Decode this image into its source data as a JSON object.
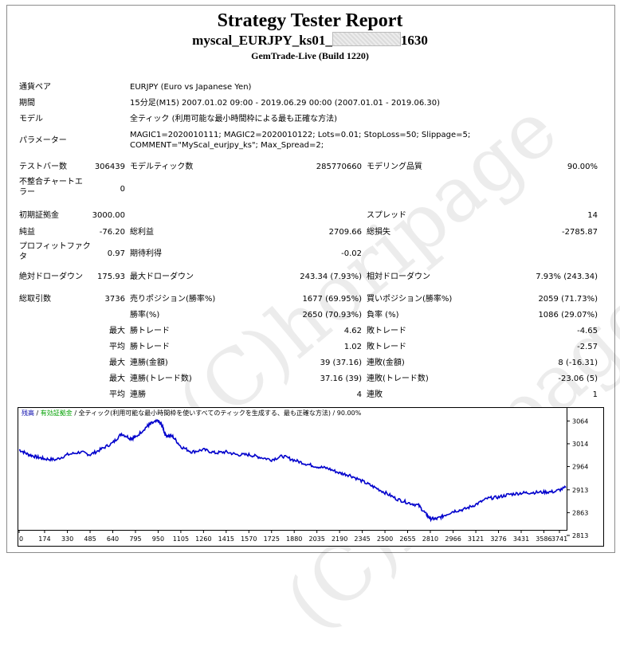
{
  "header": {
    "title": "Strategy Tester Report",
    "subtitle_prefix": "myscal_EURJPY_ks01_",
    "subtitle_suffix": "1630",
    "build": "GemTrade-Live (Build 1220)"
  },
  "rows": {
    "symbol": {
      "label": "通貨ペア",
      "value": "EURJPY (Euro vs Japanese Yen)"
    },
    "period": {
      "label": "期間",
      "value": "15分足(M15) 2007.01.02 09:00 - 2019.06.29 00:00 (2007.01.01 - 2019.06.30)"
    },
    "model": {
      "label": "モデル",
      "value": "全ティック (利用可能な最小時間枠による最も正確な方法)"
    },
    "params": {
      "label": "パラメーター",
      "value": "MAGIC1=2020010111; MAGIC2=2020010122; Lots=0.01; StopLoss=50; Slippage=5; COMMENT=\"MyScal_eurjpy_ks\"; Max_Spread=2;"
    }
  },
  "stats": {
    "bars_label": "テストバー数",
    "bars": "306439",
    "ticks_label": "モデルティック数",
    "ticks": "285770660",
    "quality_label": "モデリング品質",
    "quality": "90.00%",
    "mismatch_label": "不整合チャートエラー",
    "mismatch": "0",
    "deposit_label": "初期証拠金",
    "deposit": "3000.00",
    "spread_label": "スプレッド",
    "spread": "14",
    "net_label": "純益",
    "net": "-76.20",
    "gross_profit_label": "総利益",
    "gross_profit": "2709.66",
    "gross_loss_label": "総損失",
    "gross_loss": "-2785.87",
    "pf_label": "プロフィットファクタ",
    "pf": "0.97",
    "expected_label": "期待利得",
    "expected": "-0.02",
    "abs_dd_label": "絶対ドローダウン",
    "abs_dd": "175.93",
    "max_dd_label": "最大ドローダウン",
    "max_dd": "243.34 (7.93%)",
    "rel_dd_label": "相対ドローダウン",
    "rel_dd": "7.93% (243.34)",
    "total_trades_label": "総取引数",
    "total_trades": "3736",
    "short_label": "売りポジション(勝率%)",
    "short": "1677 (69.95%)",
    "long_label": "買いポジション(勝率%)",
    "long": "2059 (71.73%)",
    "win_pct_label": "勝率(%)",
    "win_pct": "2650 (70.93%)",
    "loss_pct_label": "負率 (%)",
    "loss_pct": "1086 (29.07%)",
    "q_max": "最大",
    "q_avg": "平均",
    "max_win_trade_label": "勝トレード",
    "max_win_trade": "4.62",
    "max_loss_trade_label": "敗トレード",
    "max_loss_trade": "-4.65",
    "avg_win_trade_label": "勝トレード",
    "avg_win_trade": "1.02",
    "avg_loss_trade_label": "敗トレード",
    "avg_loss_trade": "-2.57",
    "max_cons_wins_amt_label": "連勝(金額)",
    "max_cons_wins_amt": "39 (37.16)",
    "max_cons_losses_amt_label": "連敗(金額)",
    "max_cons_losses_amt": "8 (-16.31)",
    "max_cons_wins_cnt_label": "連勝(トレード数)",
    "max_cons_wins_cnt": "37.16 (39)",
    "max_cons_losses_cnt_label": "連敗(トレード数)",
    "max_cons_losses_cnt": "-23.06 (5)",
    "avg_cons_wins_label": "連勝",
    "avg_cons_wins": "4",
    "avg_cons_losses_label": "連敗",
    "avg_cons_losses": "1"
  },
  "watermark": "(C)horipage",
  "chart_legend": {
    "balance": "残高",
    "sep1": " / ",
    "equity": "有効証拠金",
    "rest": " / 全ティック(利用可能な最小時間枠を使いすべてのティックを生成する、最も正確な方法) / 90.00%",
    "colors": {
      "balance": "#0000aa",
      "equity": "#00a000",
      "line": "#0000cc"
    }
  },
  "chart_data": {
    "type": "line",
    "title": "",
    "xlabel": "",
    "ylabel": "",
    "xlim": [
      0,
      3736
    ],
    "ylim": [
      2813,
      3089
    ],
    "x_ticks": [
      0,
      174,
      330,
      485,
      640,
      795,
      950,
      1105,
      1260,
      1415,
      1570,
      1725,
      1880,
      2035,
      2190,
      2345,
      2500,
      2655,
      2810,
      2966,
      3121,
      3276,
      3431,
      3586,
      3741
    ],
    "y_ticks": [
      3064,
      3014,
      2964,
      2913,
      2863,
      2813
    ],
    "series": [
      {
        "x": [
          0,
          60,
          120,
          174,
          250,
          330,
          420,
          485,
          560,
          640,
          700,
          760,
          795,
          870,
          900,
          950,
          975,
          1000,
          1050,
          1105,
          1180,
          1260,
          1340,
          1415,
          1490,
          1570,
          1640,
          1725,
          1800,
          1880,
          1960,
          2035,
          2110,
          2190,
          2260,
          2345,
          2420,
          2500,
          2580,
          2655,
          2730,
          2780,
          2810,
          2850,
          2900,
          2966,
          3040,
          3121,
          3200,
          3276,
          3350,
          3431,
          3500,
          3586,
          3660,
          3736
        ],
        "y": [
          3001,
          2991,
          2985,
          2981,
          2979,
          2990,
          2996,
          2990,
          3002,
          3016,
          3036,
          3026,
          3028,
          3051,
          3058,
          3064,
          3055,
          3033,
          3030,
          3008,
          2996,
          3001,
          2994,
          2996,
          2990,
          2990,
          2985,
          2979,
          2987,
          2978,
          2970,
          2964,
          2960,
          2950,
          2945,
          2932,
          2920,
          2907,
          2893,
          2885,
          2879,
          2860,
          2850,
          2849,
          2856,
          2866,
          2870,
          2881,
          2894,
          2897,
          2903,
          2906,
          2907,
          2908,
          2909,
          2918
        ]
      }
    ]
  }
}
